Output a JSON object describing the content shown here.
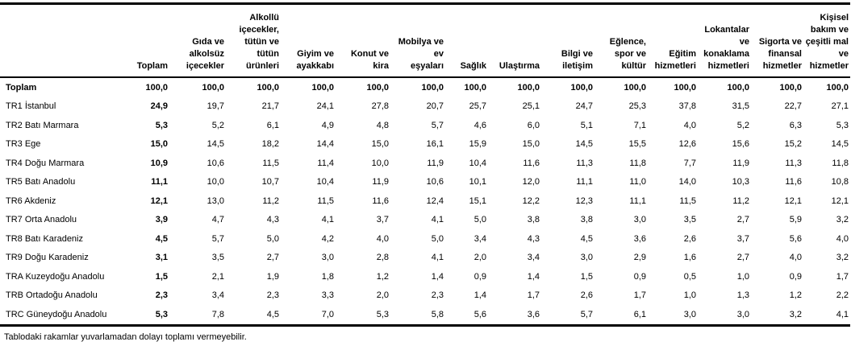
{
  "chart_data": {
    "type": "table",
    "title": "",
    "columns": [
      "",
      "Toplam",
      "Gıda ve alkolsüz içecekler",
      "Alkollü içecekler, tütün ve tütün ürünleri",
      "Giyim ve ayakkabı",
      "Konut ve kira",
      "Mobilya ve ev eşyaları",
      "Sağlık",
      "Ulaştırma",
      "Bilgi ve iletişim",
      "Eğlence, spor ve kültür",
      "Eğitim hizmetleri",
      "Lokantalar ve konaklama hizmetleri",
      "Sigorta ve finansal hizmetler",
      "Kişisel bakım ve çeşitli mal ve hizmetler"
    ],
    "column_display": [
      "",
      "Toplam",
      "Gıda ve\nalkolsüz\niçecekler",
      "Alkollü\niçecekler,\ntütün ve\ntütün\nürünleri",
      "Giyim ve\nayakkabı",
      "Konut ve\nkira",
      "Mobilya ve\nev\neşyaları",
      "Sağlık",
      "Ulaştırma",
      "Bilgi ve\niletişim",
      "Eğlence,\nspor ve\nkültür",
      "Eğitim\nhizmetleri",
      "Lokantalar\nve\nkonaklama\nhizmetleri",
      "Sigorta ve\nfinansal\nhizmetler",
      "Kişisel\nbakım ve\nçeşitli mal\nve\nhizmetler"
    ],
    "rows": [
      {
        "label": "Toplam",
        "values": [
          "100,0",
          "100,0",
          "100,0",
          "100,0",
          "100,0",
          "100,0",
          "100,0",
          "100,0",
          "100,0",
          "100,0",
          "100,0",
          "100,0",
          "100,0",
          "100,0"
        ]
      },
      {
        "label": "TR1 İstanbul",
        "values": [
          "24,9",
          "19,7",
          "21,7",
          "24,1",
          "27,8",
          "20,7",
          "25,7",
          "25,1",
          "24,7",
          "25,3",
          "37,8",
          "31,5",
          "22,7",
          "27,1"
        ]
      },
      {
        "label": "TR2 Batı Marmara",
        "values": [
          "5,3",
          "5,2",
          "6,1",
          "4,9",
          "4,8",
          "5,7",
          "4,6",
          "6,0",
          "5,1",
          "7,1",
          "4,0",
          "5,2",
          "6,3",
          "5,3"
        ]
      },
      {
        "label": "TR3 Ege",
        "values": [
          "15,0",
          "14,5",
          "18,2",
          "14,4",
          "15,0",
          "16,1",
          "15,9",
          "15,0",
          "14,5",
          "15,5",
          "12,6",
          "15,6",
          "15,2",
          "14,5"
        ]
      },
      {
        "label": "TR4 Doğu Marmara",
        "values": [
          "10,9",
          "10,6",
          "11,5",
          "11,4",
          "10,0",
          "11,9",
          "10,4",
          "11,6",
          "11,3",
          "11,8",
          "7,7",
          "11,9",
          "11,3",
          "11,8"
        ]
      },
      {
        "label": "TR5 Batı Anadolu",
        "values": [
          "11,1",
          "10,0",
          "10,7",
          "10,4",
          "11,9",
          "10,6",
          "10,1",
          "12,0",
          "11,1",
          "11,0",
          "14,0",
          "10,3",
          "11,6",
          "10,8"
        ]
      },
      {
        "label": "TR6 Akdeniz",
        "values": [
          "12,1",
          "13,0",
          "11,2",
          "11,5",
          "11,6",
          "12,4",
          "15,1",
          "12,2",
          "12,3",
          "11,1",
          "11,5",
          "11,2",
          "12,1",
          "12,1"
        ]
      },
      {
        "label": "TR7 Orta Anadolu",
        "values": [
          "3,9",
          "4,7",
          "4,3",
          "4,1",
          "3,7",
          "4,1",
          "5,0",
          "3,8",
          "3,8",
          "3,0",
          "3,5",
          "2,7",
          "5,9",
          "3,2"
        ]
      },
      {
        "label": "TR8 Batı Karadeniz",
        "values": [
          "4,5",
          "5,7",
          "5,0",
          "4,2",
          "4,0",
          "5,0",
          "3,4",
          "4,3",
          "4,5",
          "3,6",
          "2,6",
          "3,7",
          "5,6",
          "4,0"
        ]
      },
      {
        "label": "TR9 Doğu Karadeniz",
        "values": [
          "3,1",
          "3,5",
          "2,7",
          "3,0",
          "2,8",
          "4,1",
          "2,0",
          "3,4",
          "3,0",
          "2,9",
          "1,6",
          "2,7",
          "4,0",
          "3,2"
        ]
      },
      {
        "label": "TRA Kuzeydoğu Anadolu",
        "values": [
          "1,5",
          "2,1",
          "1,9",
          "1,8",
          "1,2",
          "1,4",
          "0,9",
          "1,4",
          "1,5",
          "0,9",
          "0,5",
          "1,0",
          "0,9",
          "1,7"
        ]
      },
      {
        "label": "TRB Ortadoğu Anadolu",
        "values": [
          "2,3",
          "3,4",
          "2,3",
          "3,3",
          "2,0",
          "2,3",
          "1,4",
          "1,7",
          "2,6",
          "1,7",
          "1,0",
          "1,3",
          "1,2",
          "2,2"
        ]
      },
      {
        "label": "TRC Güneydoğu Anadolu",
        "values": [
          "5,3",
          "7,8",
          "4,5",
          "7,0",
          "5,3",
          "5,8",
          "5,6",
          "3,6",
          "5,7",
          "6,1",
          "3,0",
          "3,0",
          "3,2",
          "4,1"
        ]
      }
    ],
    "footnote": "Tablodaki rakamlar yuvarlamadan dolayı toplamı vermeyebilir.",
    "layout": {
      "grid": "off",
      "header_align": "right-bottom",
      "values_align": "right",
      "bold_row": "Toplam",
      "bold_column": "Toplam",
      "border_color": "#000000",
      "text_color": "#000000",
      "background_color": "#ffffff"
    }
  }
}
